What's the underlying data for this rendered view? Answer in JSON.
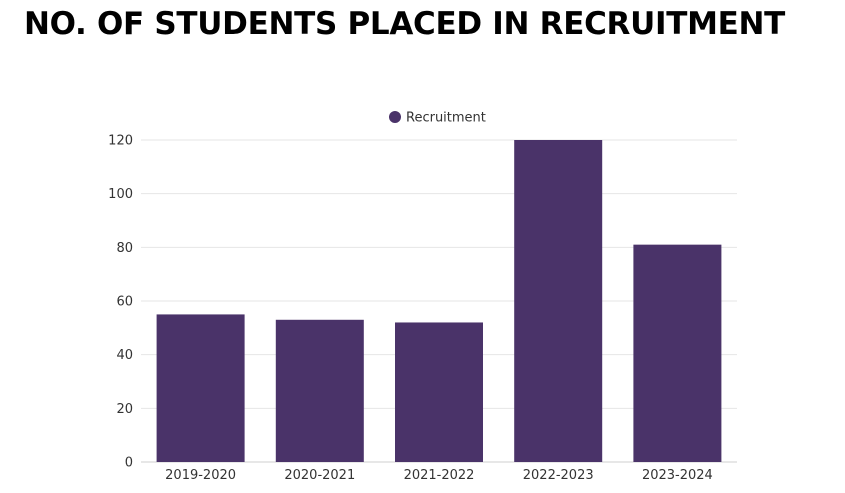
{
  "page": {
    "title": "NO. OF STUDENTS PLACED IN RECRUITMENT"
  },
  "chart_data": {
    "type": "bar",
    "title": "NO. OF STUDENTS PLACED IN RECRUITMENT",
    "xlabel": "",
    "ylabel": "",
    "categories": [
      "2019-2020",
      "2020-2021",
      "2021-2022",
      "2022-2023",
      "2023-2024"
    ],
    "series": [
      {
        "name": "Recruitment",
        "color": "#4a3369",
        "values": [
          55,
          53,
          52,
          120,
          81
        ]
      }
    ],
    "ylim": [
      0,
      120
    ],
    "yticks": [
      "0",
      "20",
      "40",
      "60",
      "80",
      "100",
      "120"
    ],
    "grid": true,
    "legend": "top-center"
  }
}
